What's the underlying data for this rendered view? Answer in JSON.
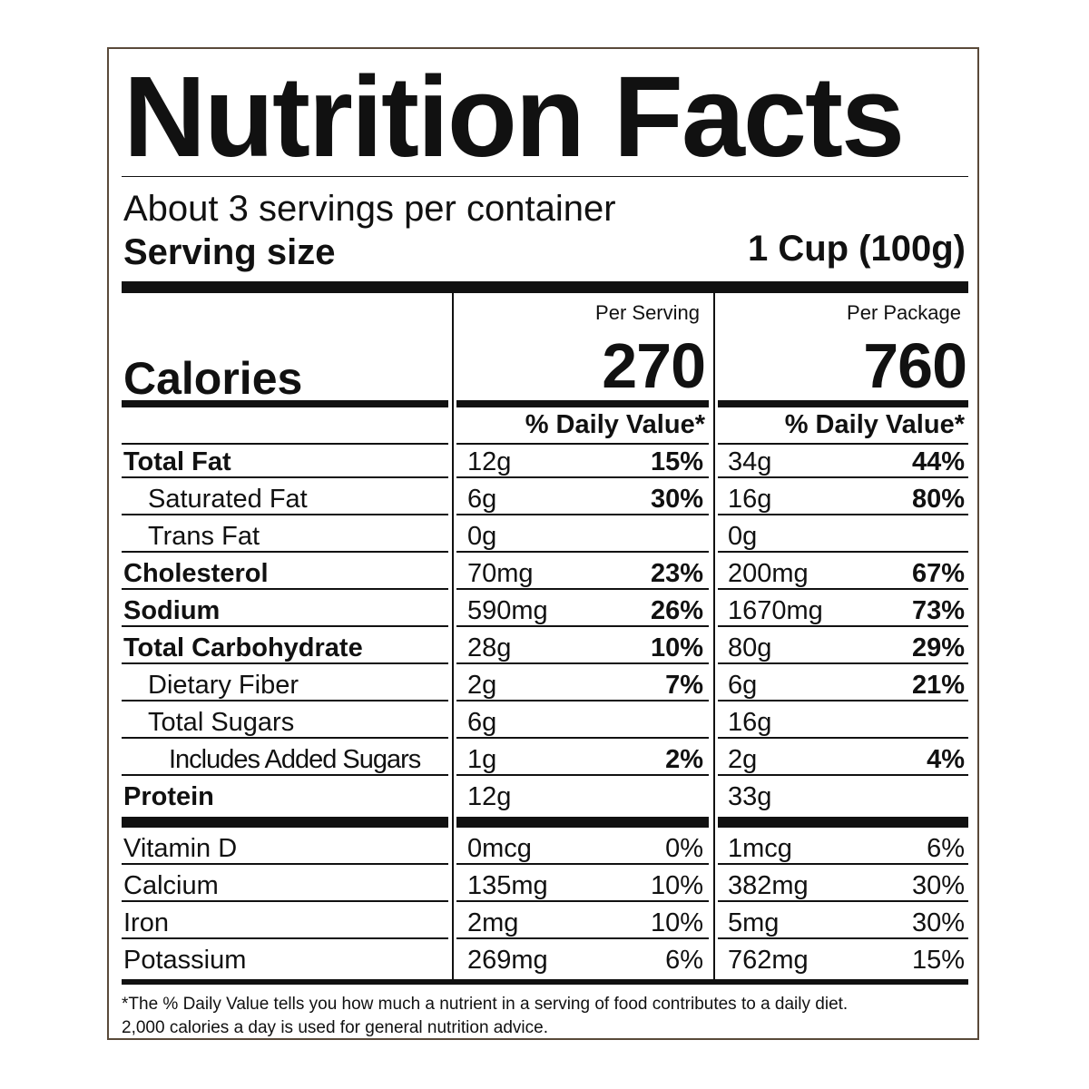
{
  "title": "Nutrition Facts",
  "servings_per_container": "About 3 servings per container",
  "serving_size_label": "Serving size",
  "serving_size_value": "1 Cup (100g)",
  "columns": {
    "per_serving": "Per Serving",
    "per_package": "Per Package"
  },
  "calories": {
    "label": "Calories",
    "per_serving": "270",
    "per_package": "760"
  },
  "daily_value_header": "% Daily Value*",
  "nutrients": [
    {
      "name": "Total Fat",
      "serving_amount": "12g",
      "serving_dv": "15%",
      "package_amount": "34g",
      "package_dv": "44%"
    },
    {
      "name": "Saturated Fat",
      "serving_amount": "6g",
      "serving_dv": "30%",
      "package_amount": "16g",
      "package_dv": "80%"
    },
    {
      "name": "Trans Fat",
      "serving_amount": "0g",
      "serving_dv": "",
      "package_amount": "0g",
      "package_dv": ""
    },
    {
      "name": "Cholesterol",
      "serving_amount": "70mg",
      "serving_dv": "23%",
      "package_amount": "200mg",
      "package_dv": "67%"
    },
    {
      "name": "Sodium",
      "serving_amount": "590mg",
      "serving_dv": "26%",
      "package_amount": "1670mg",
      "package_dv": "73%"
    },
    {
      "name": "Total Carbohydrate",
      "serving_amount": "28g",
      "serving_dv": "10%",
      "package_amount": "80g",
      "package_dv": "29%"
    },
    {
      "name": "Dietary Fiber",
      "serving_amount": "2g",
      "serving_dv": "7%",
      "package_amount": "6g",
      "package_dv": "21%"
    },
    {
      "name": "Total Sugars",
      "serving_amount": "6g",
      "serving_dv": "",
      "package_amount": "16g",
      "package_dv": ""
    },
    {
      "name": "Includes Added Sugars",
      "serving_amount": "1g",
      "serving_dv": "2%",
      "package_amount": "2g",
      "package_dv": "4%"
    },
    {
      "name": "Protein",
      "serving_amount": "12g",
      "serving_dv": "",
      "package_amount": "33g",
      "package_dv": ""
    }
  ],
  "vitamins": [
    {
      "name": "Vitamin D",
      "serving_amount": "0mcg",
      "serving_dv": "0%",
      "package_amount": "1mcg",
      "package_dv": "6%"
    },
    {
      "name": "Calcium",
      "serving_amount": "135mg",
      "serving_dv": "10%",
      "package_amount": "382mg",
      "package_dv": "30%"
    },
    {
      "name": "Iron",
      "serving_amount": "2mg",
      "serving_dv": "10%",
      "package_amount": "5mg",
      "package_dv": "30%"
    },
    {
      "name": "Potassium",
      "serving_amount": "269mg",
      "serving_dv": "6%",
      "package_amount": "762mg",
      "package_dv": "15%"
    }
  ],
  "footnote": {
    "line1": "*The % Daily Value tells you how much a nutrient in a serving of food contributes to a daily diet.",
    "line2": "2,000 calories a day is used for general nutrition advice."
  }
}
